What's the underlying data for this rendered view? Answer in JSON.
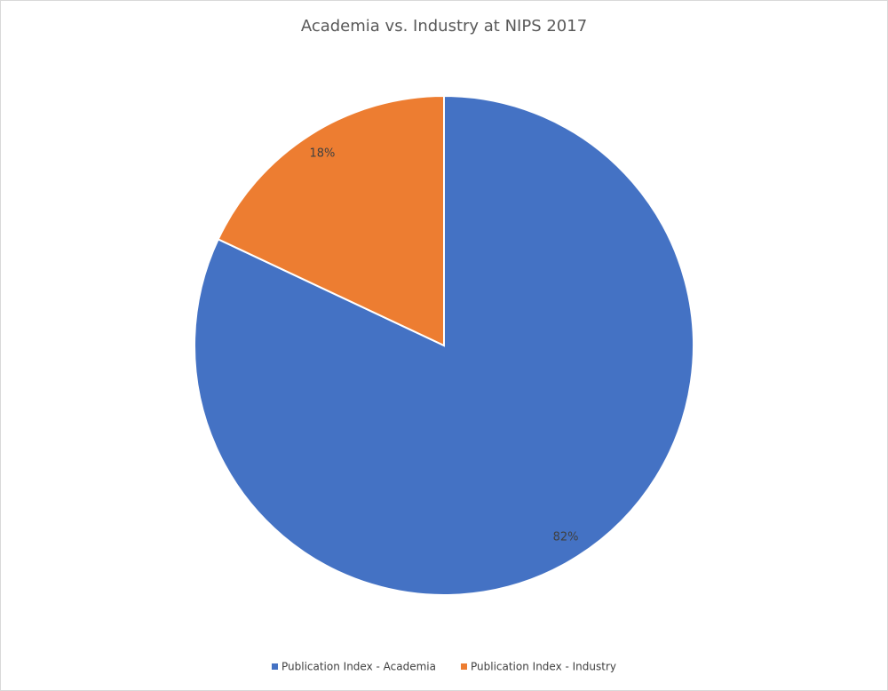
{
  "chart_data": {
    "type": "pie",
    "title": "Academia vs. Industry at NIPS 2017",
    "categories": [
      "Publication Index - Academia",
      "Publication Index - Industry"
    ],
    "values": [
      82,
      18
    ],
    "value_labels": [
      "82%",
      "18%"
    ],
    "colors": [
      "#4472c4",
      "#ed7d31"
    ],
    "legend": "bottom"
  }
}
